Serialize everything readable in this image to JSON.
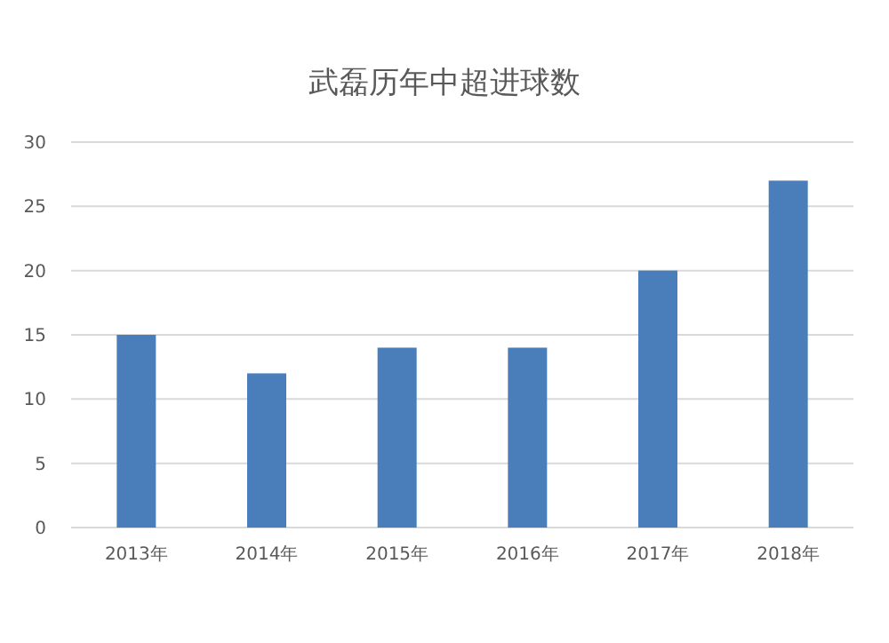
{
  "chart_data": {
    "type": "bar",
    "title": "武磊历年中超进球数",
    "categories": [
      "2013年",
      "2014年",
      "2015年",
      "2016年",
      "2017年",
      "2018年"
    ],
    "values": [
      15,
      12,
      14,
      14,
      20,
      27
    ],
    "color": "#4a7ebb",
    "ylim": [
      0,
      30
    ],
    "yticks": [
      0,
      5,
      10,
      15,
      20,
      25,
      30
    ],
    "grid": "y"
  }
}
